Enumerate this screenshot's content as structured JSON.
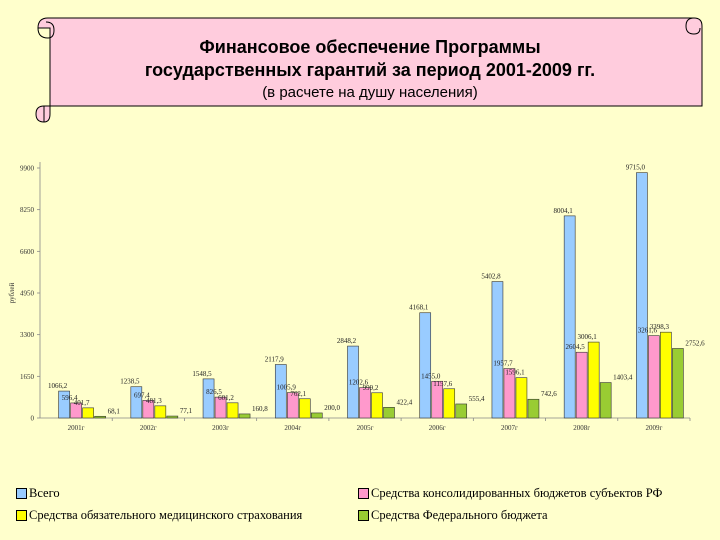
{
  "header": {
    "title_line1": "Финансовое обеспечение Программы",
    "title_line2": "государственных гарантий за период 2001-2009 гг.",
    "subtitle": "(в расчете на душу населения)"
  },
  "chart_data": {
    "type": "bar",
    "ylabel": "рублей",
    "ylim": [
      0,
      9900
    ],
    "yticks": [
      "0",
      "1650",
      "3300",
      "4950",
      "6600",
      "8250",
      "9900"
    ],
    "categories": [
      "2001г",
      "2002г",
      "2003г",
      "2004г",
      "2005г",
      "2006г",
      "2007г",
      "2008г",
      "2009г"
    ],
    "series": [
      {
        "name": "Всего",
        "color": "#99ccff",
        "values": [
          1066.2,
          1238.5,
          1548.5,
          2117.9,
          2848.2,
          4168.1,
          5402.8,
          8004.1,
          9715.0
        ],
        "labels": [
          "1066,2",
          "1238,5",
          "1548,5",
          "2117,9",
          "2848,2",
          "4168,1",
          "5402,8",
          "8004,1",
          "9715,0"
        ]
      },
      {
        "name": "Средства консолидированных бюджетов субъектов РФ",
        "color": "#ff99cc",
        "values": [
          596.4,
          697.4,
          826.5,
          1005.9,
          1202.6,
          1455.0,
          1957.7,
          2604.5,
          3261.6
        ],
        "labels": [
          "596,4",
          "697,4",
          "826,5",
          "1005,9",
          "1202,6",
          "1455,0",
          "1957,7",
          "2604,5",
          "3261,6"
        ]
      },
      {
        "name": "Средства обязательного медицинского страхования",
        "color": "#ffff00",
        "values": [
          401.7,
          481.3,
          601.2,
          762.1,
          999.2,
          1157.6,
          1596.1,
          3006.1,
          3398.3
        ],
        "labels": [
          "401,7",
          "481,3",
          "601,2",
          "762,1",
          "999,2",
          "1157,6",
          "1596,1",
          "3006,1",
          "3398,3"
        ]
      },
      {
        "name": "Средства Федерального бюджета",
        "color": "#99cc33",
        "values": [
          68.1,
          77.1,
          160.8,
          200.0,
          422.4,
          555.4,
          742.6,
          1403.4,
          2752.6
        ],
        "labels": [
          "68,1",
          "77,1",
          "160,8",
          "200,0",
          "422,4",
          "555,4",
          "742,6",
          "1403,4",
          "2752,6"
        ]
      }
    ],
    "legend": "bottom"
  }
}
